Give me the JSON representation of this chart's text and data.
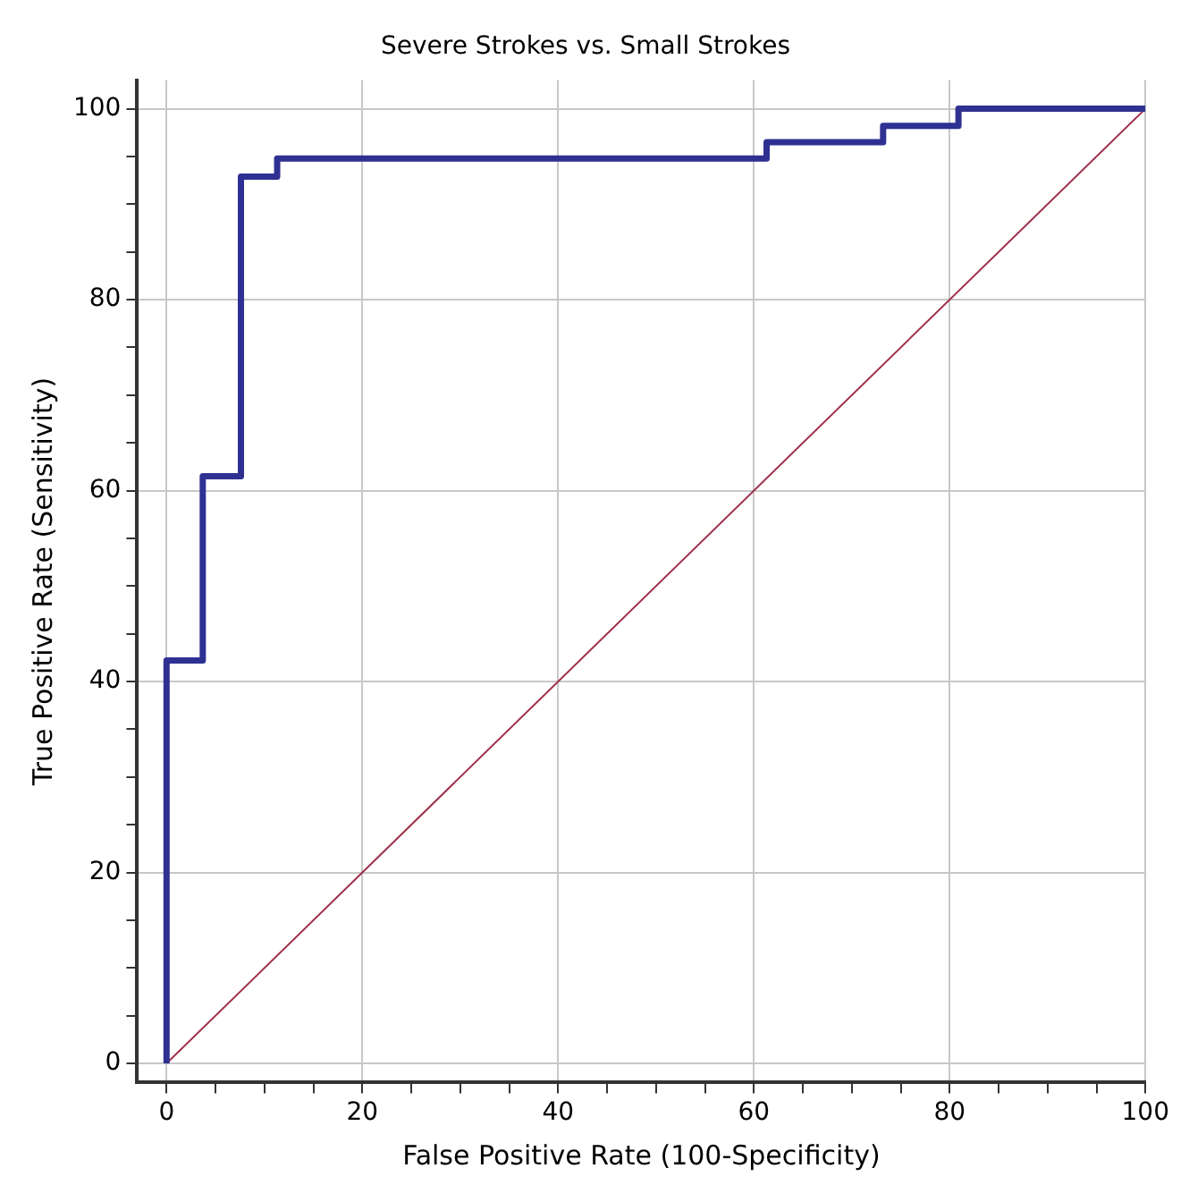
{
  "chart_data": {
    "type": "step",
    "title": "Severe Strokes vs. Small Strokes",
    "xlabel": "False Positive Rate (100-Specificity)",
    "ylabel": "True Positive Rate (Sensitivity)",
    "series": [
      {
        "color": "#2e3192",
        "x": [
          0,
          0,
          3.7,
          7.6,
          11.3,
          61.3,
          73.2,
          80.9,
          100
        ],
        "values": [
          0,
          42.2,
          61.5,
          92.9,
          94.8,
          96.5,
          98.2,
          100,
          100
        ]
      },
      {
        "type": "line",
        "color": "#a0304a",
        "x": [
          0,
          100
        ],
        "values": [
          0,
          100
        ]
      }
    ],
    "xlim": [
      -3,
      100
    ],
    "ylim": [
      -2,
      103
    ],
    "xticks": [
      0,
      {
        "value": 5,
        "label": null
      },
      {
        "value": 10,
        "label": null
      },
      {
        "value": 15,
        "label": null
      },
      20,
      {
        "value": 25,
        "label": null
      },
      {
        "value": 30,
        "label": null
      },
      {
        "value": 35,
        "label": null
      },
      40,
      {
        "value": 45,
        "label": null
      },
      {
        "value": 50,
        "label": null
      },
      {
        "value": 55,
        "label": null
      },
      60,
      {
        "value": 65,
        "label": null
      },
      {
        "value": 70,
        "label": null
      },
      {
        "value": 75,
        "label": null
      },
      80,
      {
        "value": 85,
        "label": null
      },
      {
        "value": 90,
        "label": null
      },
      {
        "value": 95,
        "label": null
      },
      100
    ],
    "yticks": [
      0,
      {
        "value": 5,
        "label": null
      },
      {
        "value": 10,
        "label": null
      },
      {
        "value": 15,
        "label": null
      },
      20,
      {
        "value": 25,
        "label": null
      },
      {
        "value": 30,
        "label": null
      },
      {
        "value": 35,
        "label": null
      },
      40,
      {
        "value": 45,
        "label": null
      },
      {
        "value": 50,
        "label": null
      },
      {
        "value": 55,
        "label": null
      },
      60,
      {
        "value": 65,
        "label": null
      },
      {
        "value": 70,
        "label": null
      },
      {
        "value": 75,
        "label": null
      },
      80,
      {
        "value": 85,
        "label": null
      },
      {
        "value": 90,
        "label": null
      },
      {
        "value": 95,
        "label": null
      },
      100
    ],
    "grid": true,
    "legend": false,
    "marker": "none"
  }
}
